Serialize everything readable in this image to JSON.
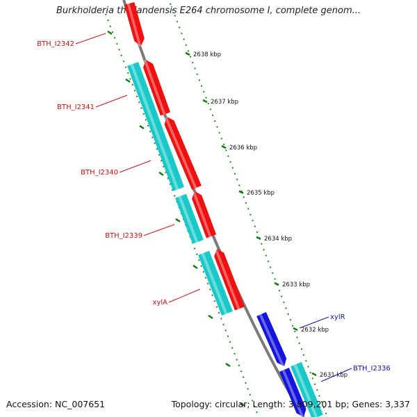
{
  "title": "Burkholderia thailandensis E264 chromosome I, complete genom...",
  "footer": {
    "accession_label": "Accession:",
    "accession": "NC_007651",
    "topology_label": "Topology:",
    "topology": "circular",
    "length_label": "Length:",
    "length": "3,809,201 bp",
    "genes_label": "Genes:",
    "genes": "3,337"
  },
  "scale": {
    "unit": "kbp",
    "ticks": [
      {
        "value": 2638,
        "label": "2638 kbp"
      },
      {
        "value": 2637,
        "label": "2637 kbp"
      },
      {
        "value": 2636,
        "label": "2636 kbp"
      },
      {
        "value": 2635,
        "label": "2635 kbp"
      },
      {
        "value": 2634,
        "label": "2634 kbp"
      },
      {
        "value": 2633,
        "label": "2633 kbp"
      },
      {
        "value": 2632,
        "label": "2632 kbp"
      },
      {
        "value": 2631,
        "label": "2631 kbp"
      }
    ]
  },
  "colors": {
    "gene_red": "#f01010",
    "cds_cyan": "#19c9c9",
    "gene_blue": "#1414dc",
    "backbone": "#7a7a7a",
    "ruler_green": "#1a8a1a",
    "label_red": "#cc1111",
    "label_blue": "#1111bb"
  },
  "genes": [
    {
      "label": "BTH_I2342",
      "strand": "reverse",
      "color": "red"
    },
    {
      "label": "BTH_I2341",
      "strand": "reverse",
      "color": "red"
    },
    {
      "label": "BTH_I2340",
      "strand": "reverse",
      "color": "red"
    },
    {
      "label": "BTH_I2339",
      "strand": "reverse",
      "color": "red"
    },
    {
      "label": "xylA",
      "strand": "reverse",
      "color": "red"
    },
    {
      "label": "xylR",
      "strand": "forward",
      "color": "blue"
    },
    {
      "label": "BTH_I2336",
      "strand": "forward",
      "color": "blue"
    }
  ]
}
